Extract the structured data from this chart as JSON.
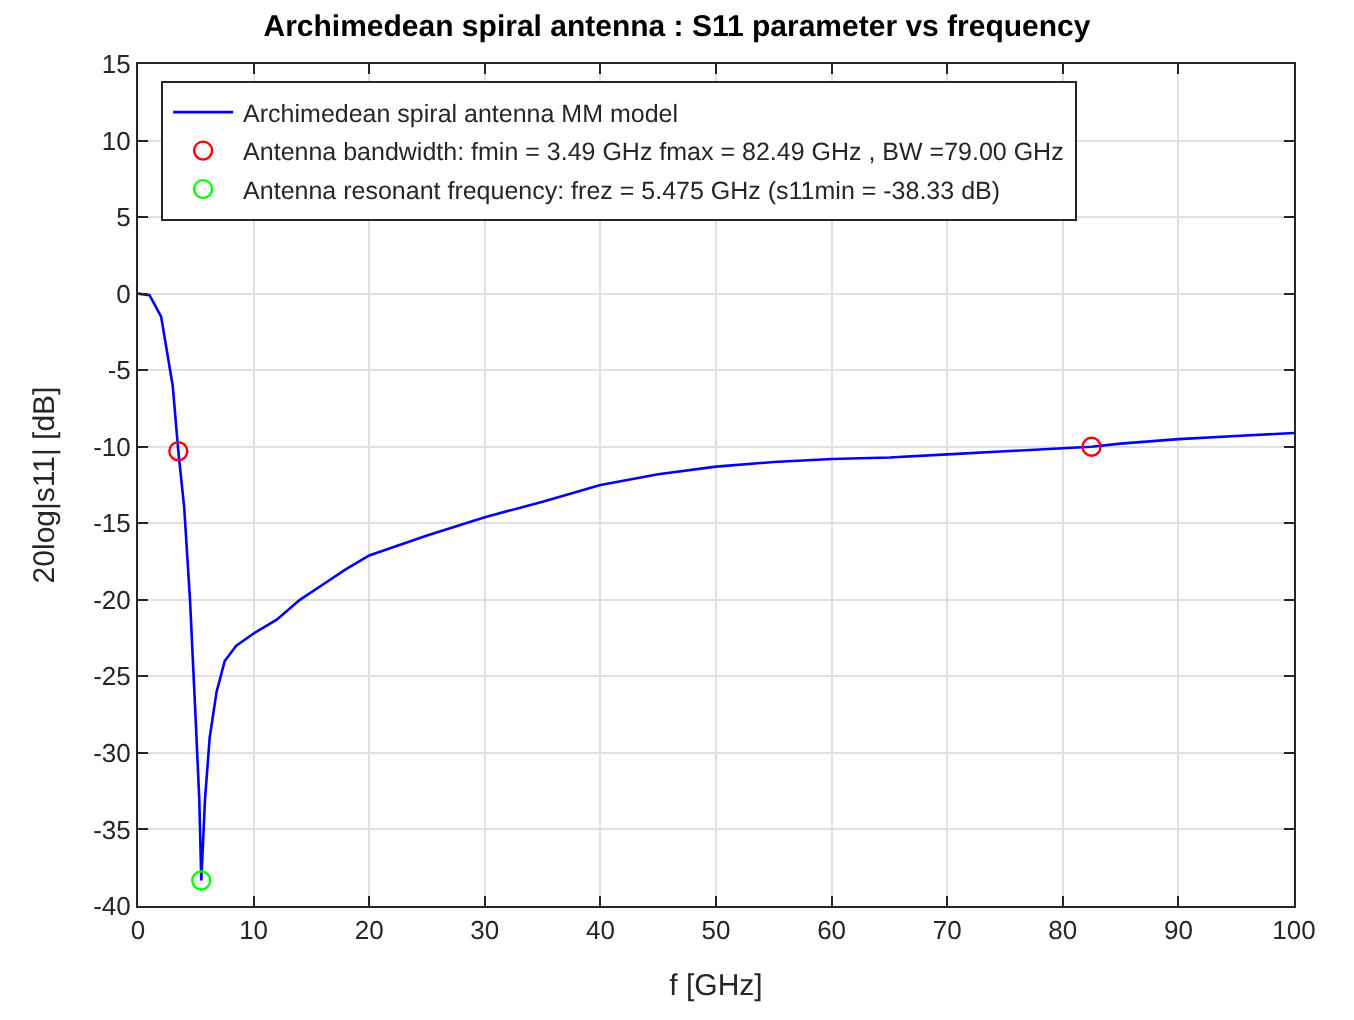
{
  "chart_data": {
    "type": "line",
    "title": "Archimedean spiral antenna : S11 parameter vs frequency",
    "xlabel": "f [GHz]",
    "ylabel": "20log|s11| [dB]",
    "xlim": [
      0,
      100
    ],
    "xticks": [
      0,
      10,
      20,
      30,
      40,
      50,
      60,
      70,
      80,
      90,
      100
    ],
    "ylim": [
      -40,
      15
    ],
    "yticks": [
      -40,
      -35,
      -30,
      -25,
      -20,
      -15,
      -10,
      -5,
      0,
      5,
      10,
      15
    ],
    "grid": true,
    "legend": "top",
    "series": [
      {
        "name": "Archimedean spiral antenna MM model",
        "color": "#0000ff",
        "marker": "none",
        "x": [
          0,
          1,
          2,
          3,
          3.49,
          4,
          4.5,
          5,
          5.3,
          5.475,
          5.8,
          6.2,
          6.8,
          7.5,
          8.5,
          10,
          12,
          14,
          16,
          18,
          20,
          25,
          30,
          35,
          40,
          45,
          50,
          55,
          60,
          65,
          70,
          75,
          80,
          82.49,
          85,
          90,
          95,
          100
        ],
        "values": [
          0,
          -0.1,
          -1.5,
          -6,
          -10.3,
          -14,
          -20,
          -28,
          -33,
          -38.33,
          -33,
          -29,
          -26,
          -24,
          -23,
          -22.2,
          -21.3,
          -20,
          -19,
          -18,
          -17.1,
          -15.8,
          -14.6,
          -13.6,
          -12.5,
          -11.8,
          -11.3,
          -11,
          -10.8,
          -10.7,
          -10.5,
          -10.3,
          -10.1,
          -10,
          -9.8,
          -9.5,
          -9.3,
          -9.1
        ]
      },
      {
        "name": "Antenna bandwidth: fmin = 3.49 GHz fmax = 82.49 GHz , BW =79.00 GHz",
        "color": "#ff0000",
        "type": "scatter",
        "marker": "circle",
        "x": [
          3.49,
          82.49
        ],
        "values": [
          -10.3,
          -10
        ]
      },
      {
        "name": "Antenna resonant frequency: frez = 5.475 GHz (s11min = -38.33 dB)",
        "color": "#00ff00",
        "type": "scatter",
        "marker": "circle",
        "x": [
          5.475
        ],
        "values": [
          -38.33
        ]
      }
    ]
  }
}
